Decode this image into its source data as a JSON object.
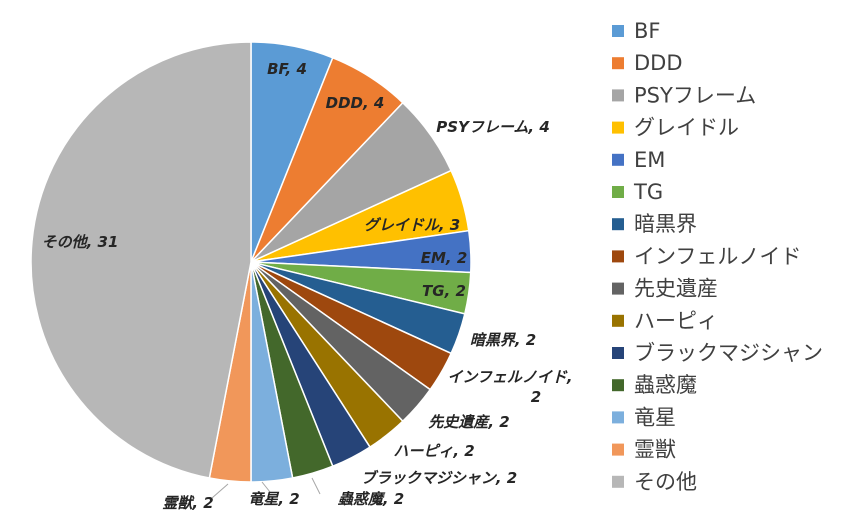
{
  "chart_data": {
    "type": "pie",
    "title": "",
    "start_angle_deg": 0,
    "direction": "clockwise",
    "legend_position": "right",
    "categories": [
      "BF",
      "DDD",
      "PSYフレーム",
      "グレイドル",
      "EM",
      "TG",
      "暗黒界",
      "インフェルノイド",
      "先史遺産",
      "ハーピィ",
      "ブラックマジシャン",
      "蟲惑魔",
      "竜星",
      "霊獣",
      "その他"
    ],
    "values": [
      4,
      4,
      4,
      3,
      2,
      2,
      2,
      2,
      2,
      2,
      2,
      2,
      2,
      2,
      31
    ],
    "colors": [
      "#5B9BD5",
      "#ED7D31",
      "#A5A5A5",
      "#FFC000",
      "#4472C4",
      "#70AD47",
      "#255E91",
      "#9E480E",
      "#636363",
      "#997300",
      "#264478",
      "#43682B",
      "#7CAFDD",
      "#F1975A",
      "#B7B7B7"
    ],
    "data_labels": [
      "BF, 4",
      "DDD, 4",
      "PSYフレーム, 4",
      "グレイドル, 3",
      "EM, 2",
      "TG, 2",
      "暗黒界, 2",
      "インフェルノイド,",
      "先史遺産, 2",
      "ハーピィ, 2",
      "ブラックマジシャン, 2",
      "蟲惑魔, 2",
      "竜星, 2",
      "霊獣, 2",
      "その他, 31"
    ],
    "data_label_continuation": {
      "index": 7,
      "text": "2"
    }
  }
}
